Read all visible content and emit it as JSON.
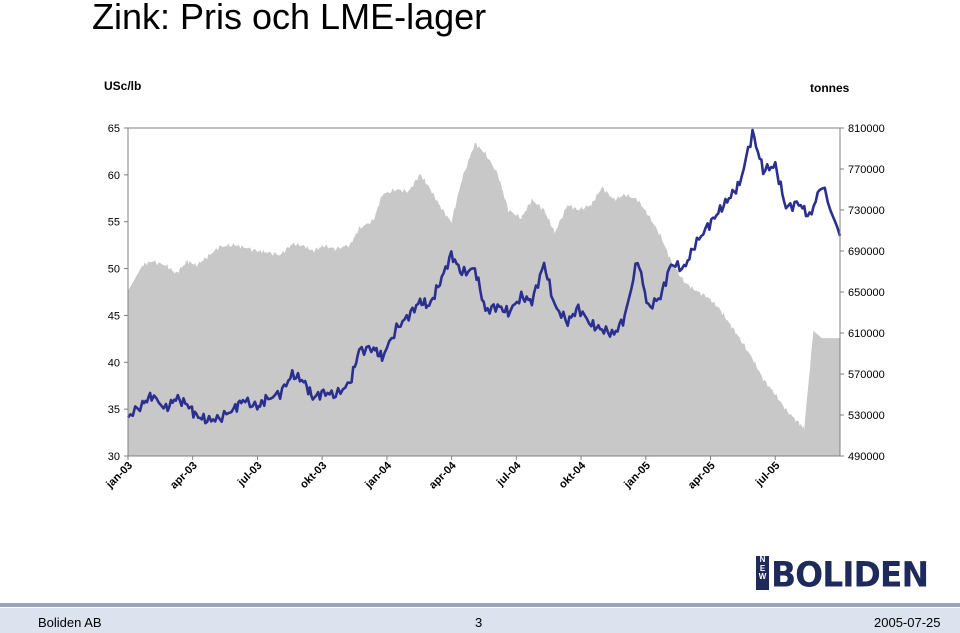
{
  "page": {
    "title": "Zink: Pris och LME-lager",
    "left_unit": "USc/lb",
    "right_unit": "tonnes"
  },
  "footer": {
    "company": "Boliden AB",
    "page_number": "3",
    "date": "2005-07-25"
  },
  "logo": {
    "mark": "NEW",
    "text": "BOLIDEN"
  },
  "colors": {
    "price_line": "#2b2f8f",
    "stock_area": "#c8c8c8",
    "footer_bar": "#9aa6b8",
    "footer_band": "#dde3ee"
  },
  "chart_data": {
    "type": "area",
    "xlabel": "",
    "x_ticks": [
      "jan-03",
      "apr-03",
      "jul-03",
      "okt-03",
      "jan-04",
      "apr-04",
      "jul-04",
      "okt-04",
      "jan-05",
      "apr-05",
      "jul-05"
    ],
    "x_range": [
      "2003-01-01",
      "2005-07-25"
    ],
    "left_axis": {
      "label": "USc/lb",
      "ylim": [
        30,
        65
      ],
      "ticks": [
        30,
        35,
        40,
        45,
        50,
        55,
        60,
        65
      ]
    },
    "right_axis": {
      "label": "tonnes",
      "ylim": [
        490000,
        810000
      ],
      "ticks": [
        490000,
        530000,
        570000,
        610000,
        650000,
        690000,
        730000,
        770000,
        810000
      ]
    },
    "grid": false,
    "series": [
      {
        "kind": "line",
        "axis": "left",
        "x": [
          "2003-01-01",
          "2003-01-20",
          "2003-02-01",
          "2003-02-20",
          "2003-03-05",
          "2003-03-20",
          "2003-04-01",
          "2003-04-15",
          "2003-05-01",
          "2003-05-20",
          "2003-06-01",
          "2003-06-20",
          "2003-07-01",
          "2003-07-20",
          "2003-08-05",
          "2003-08-20",
          "2003-09-01",
          "2003-09-15",
          "2003-10-01",
          "2003-10-20",
          "2003-11-01",
          "2003-11-20",
          "2003-12-01",
          "2003-12-20",
          "2004-01-05",
          "2004-01-20",
          "2004-02-01",
          "2004-02-15",
          "2004-03-01",
          "2004-03-15",
          "2004-04-01",
          "2004-04-15",
          "2004-05-01",
          "2004-05-15",
          "2004-06-01",
          "2004-06-15",
          "2004-07-01",
          "2004-07-15",
          "2004-08-01",
          "2004-08-15",
          "2004-09-01",
          "2004-09-15",
          "2004-10-01",
          "2004-10-15",
          "2004-11-01",
          "2004-11-15",
          "2004-12-01",
          "2004-12-15",
          "2005-01-01",
          "2005-01-15",
          "2005-02-01",
          "2005-02-15",
          "2005-03-01",
          "2005-03-15",
          "2005-04-01",
          "2005-04-15",
          "2005-05-01",
          "2005-05-15",
          "2005-06-01",
          "2005-06-15",
          "2005-07-01",
          "2005-07-25"
        ],
        "values": [
          34.2,
          35.5,
          36.5,
          35.0,
          36.2,
          35.5,
          34.3,
          33.8,
          34.0,
          35.0,
          36.0,
          35.2,
          36.0,
          36.7,
          38.7,
          38.0,
          36.2,
          36.8,
          36.5,
          37.8,
          41.3,
          41.5,
          40.5,
          43.6,
          45.0,
          46.5,
          46.0,
          48.5,
          51.5,
          49.5,
          50.0,
          45.5,
          46.0,
          45.3,
          47.0,
          46.5,
          50.5,
          46.0,
          44.3,
          45.8,
          44.0,
          43.5,
          43.0,
          44.8,
          51.0,
          45.8,
          47.0,
          50.5,
          50.0,
          52.5,
          54.5,
          56.0,
          57.5,
          59.0,
          64.5,
          60.5,
          61.0,
          56.5,
          57.0,
          55.5,
          59.0,
          53.5
        ]
      },
      {
        "kind": "area",
        "axis": "right",
        "x": [
          "2003-01-01",
          "2003-01-20",
          "2003-02-01",
          "2003-02-20",
          "2003-03-05",
          "2003-03-20",
          "2003-04-01",
          "2003-04-15",
          "2003-05-01",
          "2003-05-20",
          "2003-06-01",
          "2003-06-20",
          "2003-07-01",
          "2003-07-20",
          "2003-08-05",
          "2003-08-20",
          "2003-09-01",
          "2003-09-15",
          "2003-10-01",
          "2003-10-20",
          "2003-11-01",
          "2003-11-20",
          "2003-12-01",
          "2003-12-20",
          "2004-01-05",
          "2004-01-20",
          "2004-02-01",
          "2004-02-15",
          "2004-03-01",
          "2004-03-15",
          "2004-04-01",
          "2004-04-15",
          "2004-05-01",
          "2004-05-15",
          "2004-06-01",
          "2004-06-15",
          "2004-07-01",
          "2004-07-15",
          "2004-08-01",
          "2004-08-15",
          "2004-09-01",
          "2004-09-15",
          "2004-10-01",
          "2004-10-15",
          "2004-11-01",
          "2004-11-15",
          "2004-12-01",
          "2004-12-15",
          "2005-01-01",
          "2005-01-15",
          "2005-02-01",
          "2005-02-15",
          "2005-03-01",
          "2005-03-15",
          "2005-04-01",
          "2005-04-15",
          "2005-05-01",
          "2005-05-15",
          "2005-06-01",
          "2005-06-08",
          "2005-06-20",
          "2005-07-01",
          "2005-07-25"
        ],
        "values": [
          651000,
          676000,
          680000,
          676000,
          668000,
          680000,
          676000,
          684000,
          694000,
          696000,
          694000,
          690000,
          689000,
          686000,
          697000,
          695000,
          690000,
          695000,
          692000,
          696000,
          712000,
          720000,
          745000,
          750000,
          748000,
          765000,
          752000,
          734000,
          718000,
          760000,
          795000,
          785000,
          765000,
          730000,
          722000,
          740000,
          730000,
          708000,
          735000,
          730000,
          735000,
          752000,
          740000,
          745000,
          740000,
          725000,
          705000,
          680000,
          660000,
          652000,
          645000,
          635000,
          620000,
          605000,
          585000,
          565000,
          550000,
          535000,
          522000,
          517000,
          612000,
          605000,
          605000
        ]
      }
    ]
  }
}
